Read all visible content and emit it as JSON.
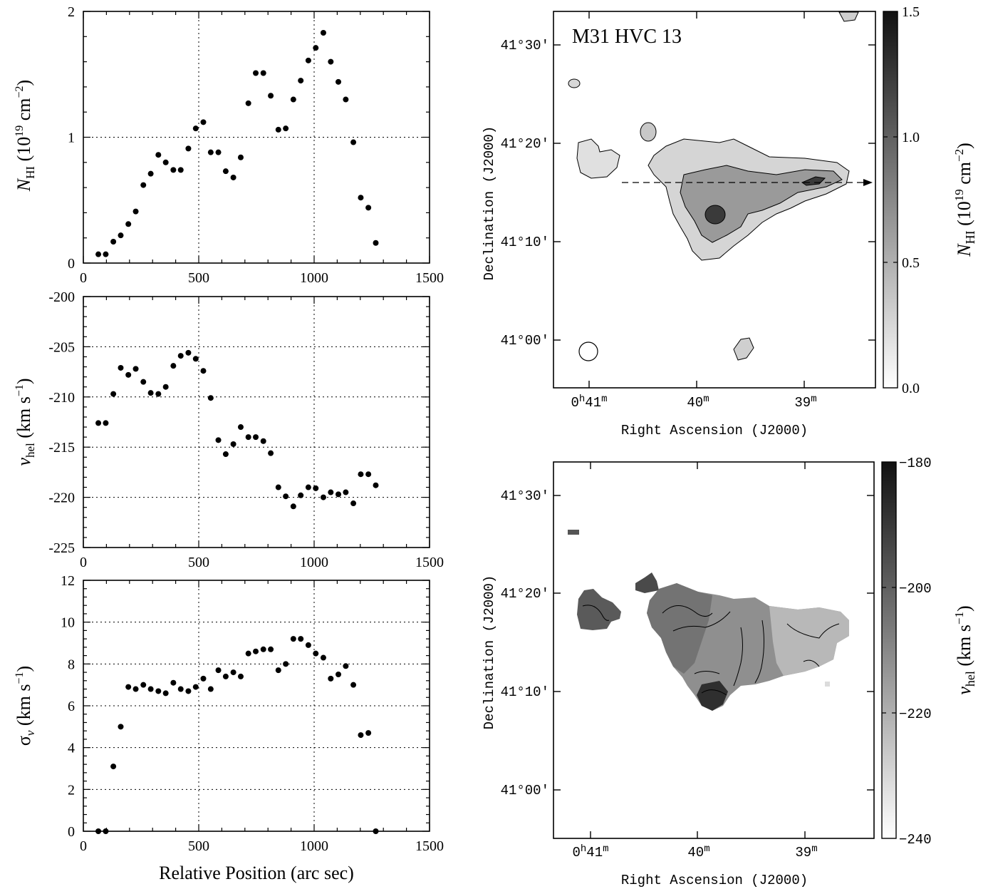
{
  "chart_data": [
    {
      "type": "scatter",
      "panel": "top-left",
      "ylabel": "N_HI (10^19 cm^-2)",
      "xlabel": "",
      "xlim": [
        0,
        1500
      ],
      "ylim": [
        0,
        2
      ],
      "x_ticks": [
        "0",
        "500",
        "1000",
        "1500"
      ],
      "y_ticks": [
        "0",
        "1",
        "2"
      ],
      "grid": "dotted",
      "x": [
        65,
        97,
        130,
        162,
        195,
        227,
        260,
        292,
        325,
        357,
        390,
        422,
        455,
        487,
        520,
        552,
        585,
        617,
        650,
        682,
        715,
        747,
        780,
        812,
        845,
        877,
        910,
        942,
        975,
        1007,
        1040,
        1072,
        1105,
        1137,
        1170,
        1202,
        1235,
        1267
      ],
      "values": [
        0.07,
        0.07,
        0.17,
        0.22,
        0.31,
        0.41,
        0.62,
        0.71,
        0.86,
        0.8,
        0.74,
        0.74,
        0.91,
        1.07,
        1.12,
        0.88,
        0.88,
        0.73,
        0.68,
        0.84,
        1.27,
        1.51,
        1.51,
        1.33,
        1.06,
        1.07,
        1.3,
        1.45,
        1.61,
        1.71,
        1.83,
        1.6,
        1.44,
        1.3,
        0.96,
        0.52,
        0.44,
        0.16
      ]
    },
    {
      "type": "scatter",
      "panel": "middle-left",
      "ylabel": "v_hel (km s^-1)",
      "xlabel": "",
      "xlim": [
        0,
        1500
      ],
      "ylim": [
        -225,
        -200
      ],
      "x_ticks": [
        "0",
        "500",
        "1000",
        "1500"
      ],
      "y_ticks": [
        "-225",
        "-220",
        "-215",
        "-210",
        "-205",
        "-200"
      ],
      "grid": "dotted",
      "x": [
        65,
        97,
        130,
        162,
        195,
        227,
        260,
        292,
        325,
        357,
        390,
        422,
        455,
        487,
        520,
        552,
        585,
        617,
        650,
        682,
        715,
        747,
        780,
        812,
        845,
        877,
        910,
        942,
        975,
        1007,
        1040,
        1072,
        1105,
        1137,
        1170,
        1202,
        1235,
        1267
      ],
      "values": [
        -212.6,
        -212.6,
        -209.7,
        -207.1,
        -207.8,
        -207.2,
        -208.5,
        -209.6,
        -209.7,
        -209.0,
        -206.9,
        -205.9,
        -205.6,
        -206.2,
        -207.4,
        -210.1,
        -214.3,
        -215.7,
        -214.7,
        -213.0,
        -214.0,
        -214.0,
        -214.4,
        -215.6,
        -219.0,
        -219.9,
        -220.9,
        -219.8,
        -219.0,
        -219.1,
        -220.0,
        -219.5,
        -219.7,
        -219.5,
        -220.6,
        -217.7,
        -217.7,
        -218.8
      ]
    },
    {
      "type": "scatter",
      "panel": "bottom-left",
      "ylabel": "σ_v (km s^-1)",
      "xlabel": "Relative Position (arc sec)",
      "xlim": [
        0,
        1500
      ],
      "ylim": [
        0,
        12
      ],
      "x_ticks": [
        "0",
        "500",
        "1000",
        "1500"
      ],
      "y_ticks": [
        "0",
        "2",
        "4",
        "6",
        "8",
        "10",
        "12"
      ],
      "grid": "dotted",
      "x": [
        65,
        97,
        130,
        162,
        195,
        227,
        260,
        292,
        325,
        357,
        390,
        422,
        455,
        487,
        520,
        552,
        585,
        617,
        650,
        682,
        715,
        747,
        780,
        812,
        845,
        877,
        910,
        942,
        975,
        1007,
        1040,
        1072,
        1105,
        1137,
        1170,
        1202,
        1235,
        1267
      ],
      "values": [
        0.0,
        0.0,
        3.1,
        5.0,
        6.9,
        6.8,
        7.0,
        6.8,
        6.7,
        6.6,
        7.1,
        6.8,
        6.7,
        6.9,
        7.3,
        6.8,
        7.7,
        7.4,
        7.6,
        7.4,
        8.5,
        8.6,
        8.7,
        8.7,
        7.7,
        8.0,
        9.2,
        9.2,
        8.9,
        8.5,
        8.3,
        7.3,
        7.5,
        7.9,
        7.0,
        4.6,
        4.7,
        0.0
      ]
    },
    {
      "type": "heatmap",
      "panel": "top-right",
      "title": "M31 HVC 13",
      "xlabel": "Right Ascension (J2000)",
      "ylabel": "Declination (J2000)",
      "x_ticks": [
        "0h41m",
        "40m",
        "39m"
      ],
      "y_ticks": [
        "41°00′",
        "41°10′",
        "41°20′",
        "41°30′"
      ],
      "colorbar_label": "N_HI (10^19 cm^-2)",
      "colorbar_range": [
        0.0,
        1.5
      ],
      "colorbar_ticks": [
        "0.0",
        "0.5",
        "1.0",
        "1.5"
      ],
      "cmap": "white-to-black"
    },
    {
      "type": "heatmap",
      "panel": "bottom-right",
      "xlabel": "Right Ascension (J2000)",
      "ylabel": "Declination (J2000)",
      "x_ticks": [
        "0h41m",
        "40m",
        "39m"
      ],
      "y_ticks": [
        "41°00′",
        "41°10′",
        "41°20′",
        "41°30′"
      ],
      "colorbar_label": "v_hel (km s^-1)",
      "colorbar_range": [
        -240,
        -180
      ],
      "colorbar_ticks": [
        "-240",
        "-220",
        "-200",
        "-180"
      ],
      "cmap": "white-to-black"
    }
  ],
  "labels": {
    "p1_y": "N",
    "p1_y_sub": "HI",
    "p1_y_unit": "(10",
    "p1_y_sup": "19",
    "p1_y_unit2": "cm",
    "p1_y_sup2": "−2",
    "p2_y": "v",
    "p2_y_sub": "hel",
    "p2_y_unit": "(km s",
    "p2_y_sup": "−1",
    "p3_y": "σ",
    "p3_y_sub": "v",
    "p3_y_unit": "(km s",
    "p3_y_sup": "−1",
    "close": ")",
    "xlabel": "Relative Position (arc sec)",
    "map_title": "M31 HVC 13",
    "map_xlabel": "Right Ascension (J2000)",
    "map_ylabel": "Declination (J2000)",
    "ra_h": "0",
    "ra_h_sup": "h",
    "ra_41": "41",
    "ra_40": "40",
    "ra_39": "39",
    "ra_m": "m",
    "dec_00": "41°00′",
    "dec_10": "41°10′",
    "dec_20": "41°20′",
    "dec_30": "41°30′",
    "cb1_0": "0.0",
    "cb1_05": "0.5",
    "cb1_10": "1.0",
    "cb1_15": "1.5",
    "cb1_label_n": "N",
    "cb1_label_sub": "HI",
    "cb1_label_unit": "(10",
    "cb1_label_sup": "19",
    "cb1_label_cm": "cm",
    "cb1_label_sup2": "−2",
    "cb2_180": "−180",
    "cb2_200": "−200",
    "cb2_220": "−220",
    "cb2_240": "−240",
    "cb2_label_v": "v",
    "cb2_label_sub": "hel",
    "cb2_label_unit": "(km s",
    "cb2_label_sup": "−1"
  }
}
